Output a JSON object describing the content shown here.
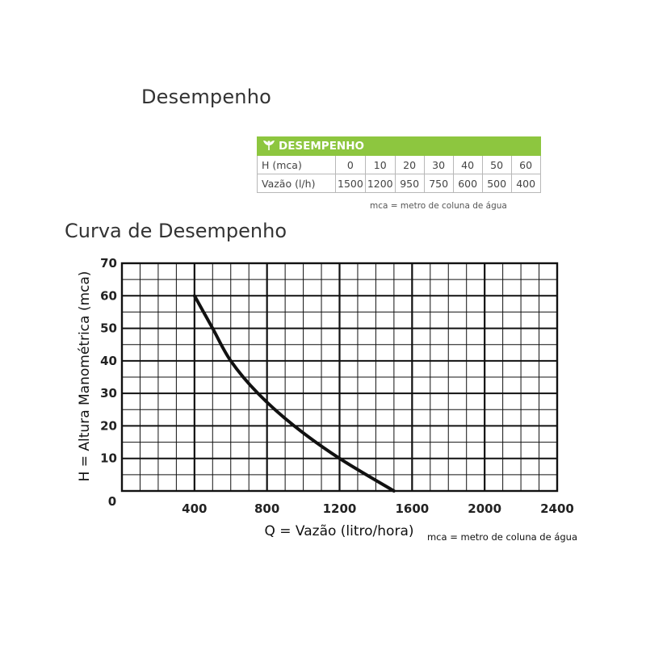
{
  "header": {
    "title": "Desempenho"
  },
  "table": {
    "title": "DESEMPENHO",
    "icon": "leaf-icon",
    "accent_color": "#8dc63f",
    "rows": [
      {
        "label": "H (mca)",
        "values": [
          "0",
          "10",
          "20",
          "30",
          "40",
          "50",
          "60"
        ]
      },
      {
        "label": "Vazão (l/h)",
        "values": [
          "1500",
          "1200",
          "950",
          "750",
          "600",
          "500",
          "400"
        ]
      }
    ],
    "note": "mca = metro de coluna de água"
  },
  "chart_data": {
    "type": "line",
    "title": "Curva de Desempenho",
    "xlabel": "Q = Vazão (litro/hora)",
    "ylabel": "H = Altura Manométrica (mca)",
    "note": "mca = metro de coluna de água",
    "xlim": [
      0,
      2400
    ],
    "ylim": [
      0,
      70
    ],
    "x_ticks": [
      "400",
      "800",
      "1200",
      "1600",
      "2000",
      "2400"
    ],
    "y_ticks": [
      "10",
      "20",
      "30",
      "40",
      "50",
      "60",
      "70"
    ],
    "origin_label": "0",
    "grid": true,
    "series": [
      {
        "x": [
          1500,
          1200,
          950,
          750,
          600,
          500,
          400
        ],
        "y": [
          0,
          10,
          20,
          30,
          40,
          50,
          60
        ]
      }
    ]
  }
}
